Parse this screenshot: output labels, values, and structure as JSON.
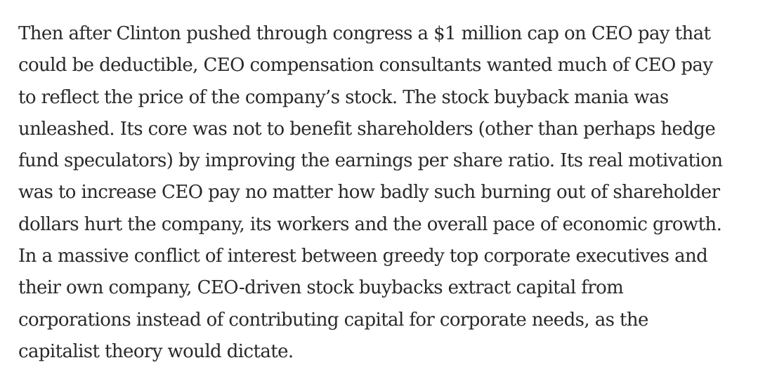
{
  "article": {
    "paragraph_lines": [
      "Then after Clinton pushed through congress a $1 million cap on CEO pay that",
      "could be deductible, CEO compensation consultants wanted much of CEO pay",
      "to reflect the price of the company’s stock. The stock buyback mania was",
      "unleashed. Its core was not to benefit shareholders (other than perhaps hedge",
      "fund speculators) by improving the earnings per share ratio. Its real motivation",
      "was to increase CEO pay no matter how badly such burning out of shareholder",
      "dollars hurt the company, its workers and the overall pace of economic growth.",
      "In a massive conflict of interest between greedy top corporate executives and",
      "their own company, CEO-driven stock buybacks extract capital from",
      "corporations instead of contributing capital for corporate needs, as the",
      "capitalist theory would dictate."
    ]
  }
}
